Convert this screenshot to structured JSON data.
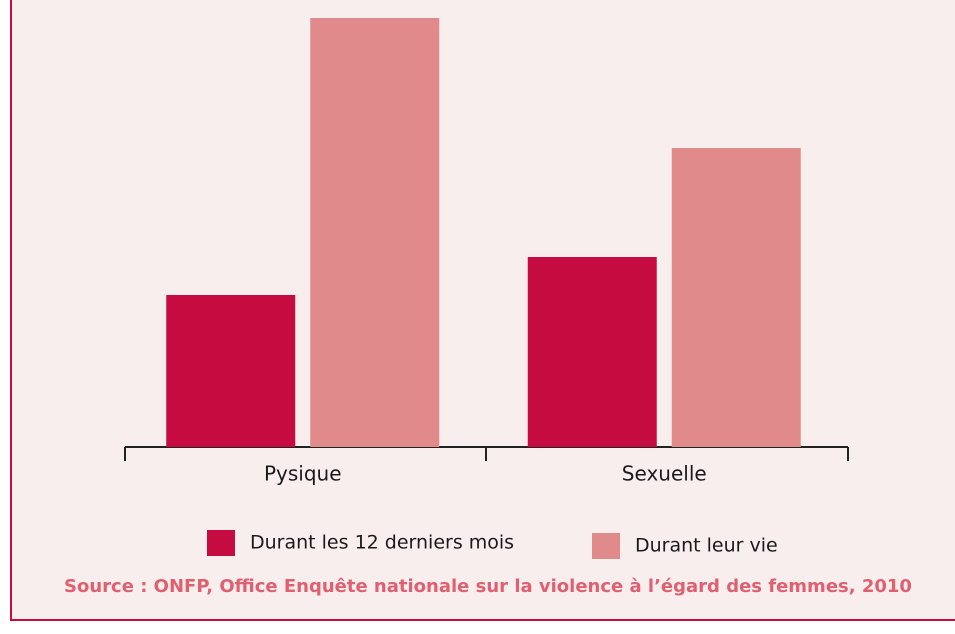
{
  "chart_data": {
    "type": "bar",
    "categories": [
      "Pysique",
      "Sexuelle"
    ],
    "series": [
      {
        "name": "Durant les 12 derniers mois",
        "color": "#c50b40",
        "values": [
          15.2,
          19.0
        ]
      },
      {
        "name": "Durant leur vie",
        "color": "#e08a8c",
        "values": [
          42.9,
          29.9
        ]
      }
    ],
    "ylim": [
      0,
      45
    ],
    "source": "Source : ONFP, Office Enquête nationale sur la violence à l’égard des femmes, 2010"
  }
}
